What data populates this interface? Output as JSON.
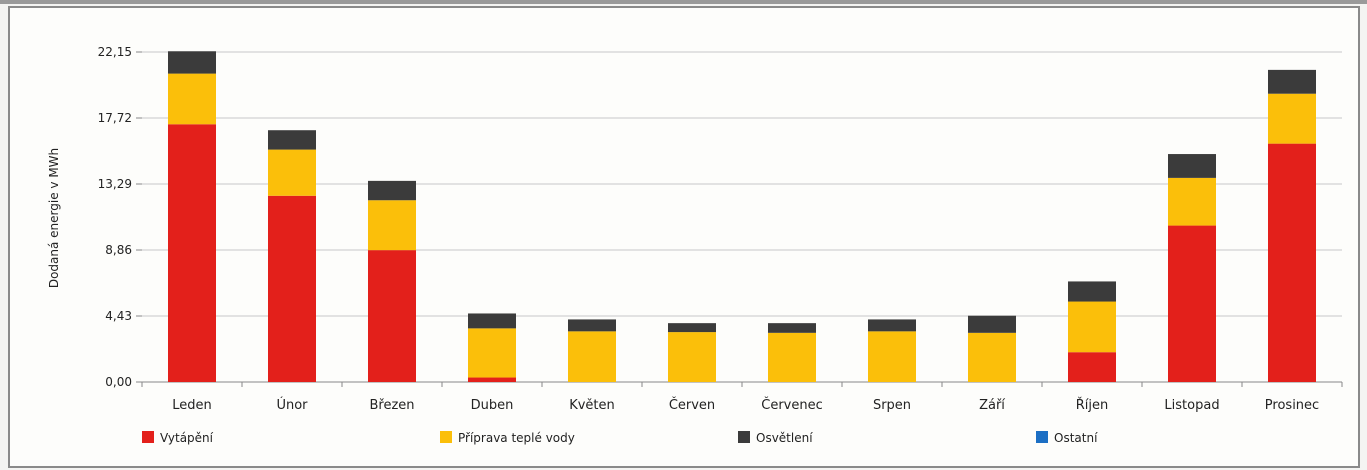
{
  "chart_data": {
    "type": "bar",
    "stacked": true,
    "ylabel": "Dodaná energie v MWh",
    "xlabel": "",
    "ylim": [
      0,
      22.15
    ],
    "yticks": [
      "0,00",
      "4,43",
      "8,86",
      "13,29",
      "17,72",
      "22,15"
    ],
    "ytick_values": [
      0,
      4.43,
      8.86,
      13.29,
      17.72,
      22.15
    ],
    "grid": true,
    "legend_position": "bottom",
    "categories": [
      "Leden",
      "Únor",
      "Březen",
      "Duben",
      "Květen",
      "Červen",
      "Červenec",
      "Srpen",
      "Září",
      "Říjen",
      "Listopad",
      "Prosinec"
    ],
    "series": [
      {
        "name": "Vytápění",
        "color": "#e3201b",
        "values": [
          17.3,
          12.5,
          8.85,
          0.3,
          0.0,
          0.0,
          0.0,
          0.0,
          0.0,
          2.0,
          10.5,
          16.0
        ]
      },
      {
        "name": "Příprava teplé vody",
        "color": "#fbbf0a",
        "values": [
          3.4,
          3.1,
          3.35,
          3.3,
          3.4,
          3.35,
          3.3,
          3.4,
          3.3,
          3.4,
          3.2,
          3.35
        ]
      },
      {
        "name": "Osvětlení",
        "color": "#3b3b3b",
        "values": [
          1.5,
          1.3,
          1.3,
          1.0,
          0.8,
          0.6,
          0.65,
          0.8,
          1.15,
          1.35,
          1.6,
          1.6
        ]
      },
      {
        "name": "Ostatní",
        "color": "#1c6fc4",
        "values": [
          0,
          0,
          0,
          0,
          0,
          0,
          0,
          0,
          0,
          0,
          0,
          0
        ]
      }
    ]
  }
}
